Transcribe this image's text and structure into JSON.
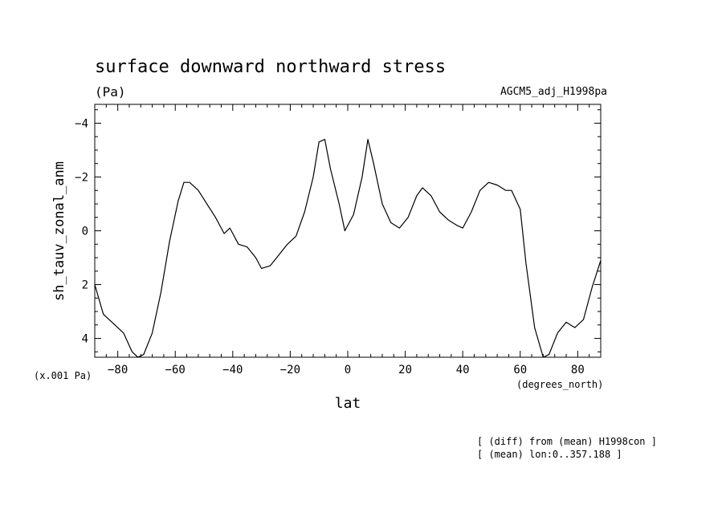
{
  "header": {
    "title": "surface downward northward stress",
    "units": "(Pa)",
    "dataset": "AGCM5_adj_H1998pa"
  },
  "axes": {
    "y_scale_note": "(x.001 Pa)",
    "x_units": "(degrees_north)"
  },
  "footer": {
    "note_1": "[ (diff) from (mean) H1998con ]",
    "note_2": "[ (mean) lon:0..357.188 ]"
  },
  "chart_data": {
    "type": "line",
    "title": "surface downward northward stress",
    "xlabel": "lat",
    "ylabel": "sh_tauv_zonal_anm",
    "xlim": [
      -88,
      88
    ],
    "ylim": [
      4.7,
      -4.7
    ],
    "y_inverted": true,
    "x_ticks": [
      -80,
      -60,
      -40,
      -20,
      0,
      20,
      40,
      60,
      80
    ],
    "x_tick_labels": [
      "−80",
      "−60",
      "−40",
      "−20",
      "0",
      "20",
      "40",
      "60",
      "80"
    ],
    "y_ticks": [
      -4,
      -2,
      0,
      2,
      4
    ],
    "y_tick_labels": [
      "−4",
      "−2",
      "0",
      "2",
      "4"
    ],
    "grid": false,
    "series": [
      {
        "x": [
          -88,
          -85,
          -80,
          -78,
          -75,
          -73,
          -71,
          -68,
          -65,
          -62,
          -59,
          -57,
          -55,
          -52,
          -49,
          -46,
          -43,
          -41,
          -38,
          -35,
          -32,
          -30,
          -27,
          -24,
          -21,
          -18,
          -15,
          -12,
          -10,
          -8,
          -6,
          -3,
          -1,
          2,
          5,
          7,
          9,
          12,
          15,
          18,
          21,
          24,
          26,
          29,
          32,
          35,
          38,
          40,
          43,
          46,
          49,
          52,
          55,
          57,
          60,
          62,
          65,
          68,
          70,
          73,
          76,
          79,
          82,
          85,
          88
        ],
        "y": [
          2.0,
          3.1,
          3.6,
          3.8,
          4.5,
          4.7,
          4.6,
          3.8,
          2.3,
          0.4,
          -1.1,
          -1.8,
          -1.8,
          -1.5,
          -1.0,
          -0.5,
          0.1,
          -0.1,
          0.5,
          0.6,
          1.0,
          1.4,
          1.3,
          0.9,
          0.5,
          0.2,
          -0.7,
          -2.0,
          -3.3,
          -3.4,
          -2.3,
          -1.0,
          0.0,
          -0.6,
          -2.0,
          -3.4,
          -2.5,
          -1.0,
          -0.3,
          -0.1,
          -0.5,
          -1.3,
          -1.6,
          -1.3,
          -0.7,
          -0.4,
          -0.2,
          -0.1,
          -0.7,
          -1.5,
          -1.8,
          -1.7,
          -1.5,
          -1.5,
          -0.8,
          1.2,
          3.6,
          4.7,
          4.6,
          3.8,
          3.4,
          3.6,
          3.3,
          2.1,
          1.1
        ]
      }
    ]
  }
}
